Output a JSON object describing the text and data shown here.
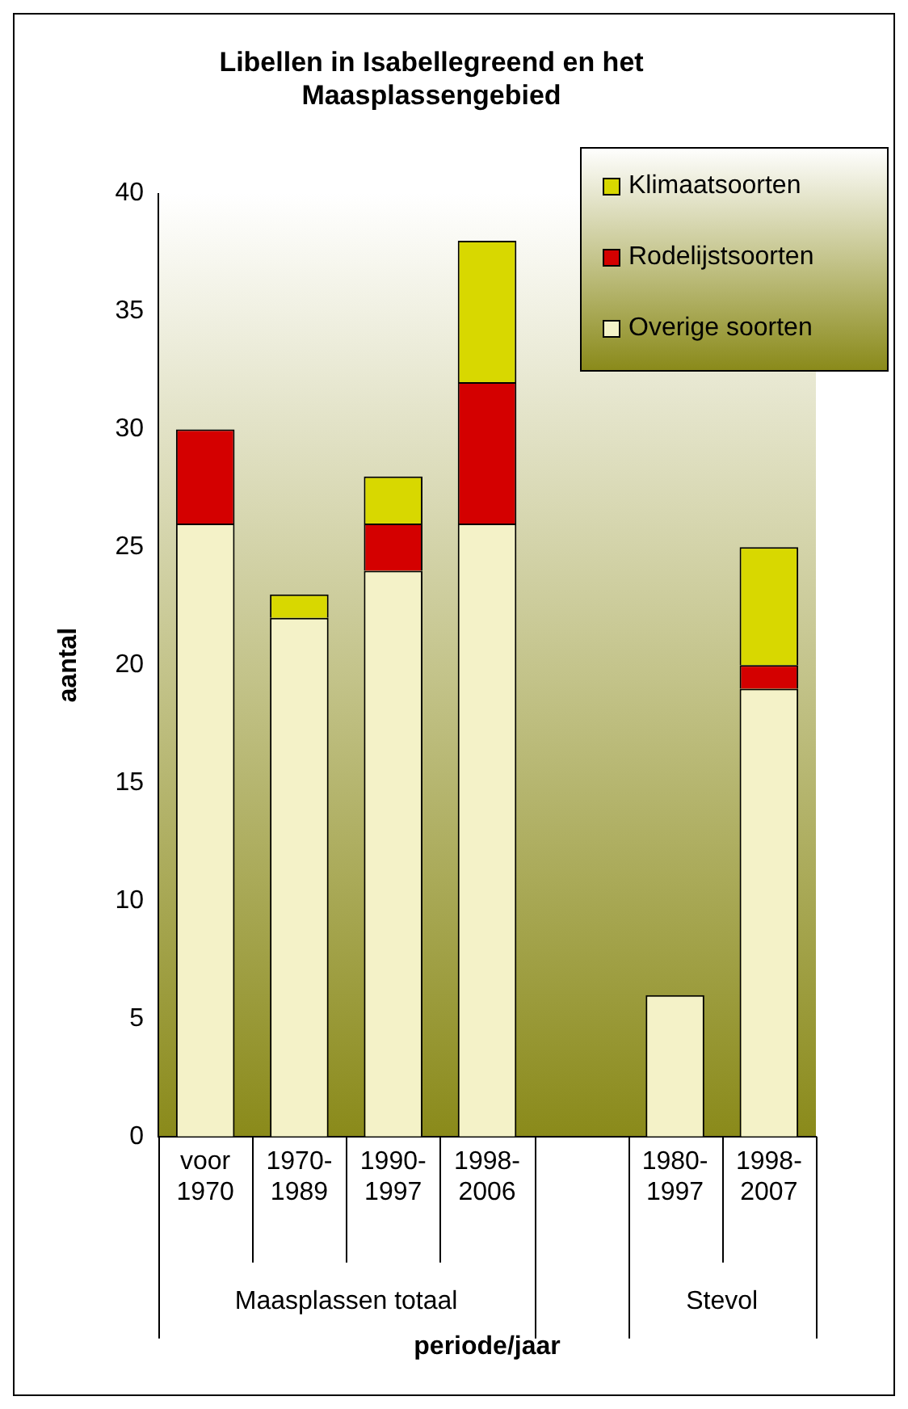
{
  "chart_data": {
    "type": "bar",
    "title": "Libellen in Isabellegreend en het Maasplassengebied",
    "xlabel": "periode/jaar",
    "ylabel": "aantal",
    "categories": [
      "voor 1970",
      "1970-1989",
      "1990-1997",
      "1998-2006",
      null,
      "1980-1997",
      "1998-2007"
    ],
    "series": [
      {
        "name": "Overige soorten",
        "color": "#f4f2c8",
        "values": [
          26,
          22,
          24,
          26,
          null,
          6,
          19
        ]
      },
      {
        "name": "Rodelijstsoorten",
        "color": "#d40000",
        "values": [
          4,
          0,
          2,
          6,
          null,
          0,
          1
        ]
      },
      {
        "name": "Klimaatsoorten",
        "color": "#d8d800",
        "values": [
          0,
          1,
          2,
          6,
          null,
          0,
          5
        ]
      }
    ],
    "stacked": true,
    "ylim": [
      0,
      40
    ],
    "yticks": [
      0,
      5,
      10,
      15,
      20,
      25,
      30,
      35,
      40
    ],
    "grid": false,
    "legend": "top right",
    "annotations": [
      "Maasplassen totaal",
      "Stevol"
    ]
  }
}
